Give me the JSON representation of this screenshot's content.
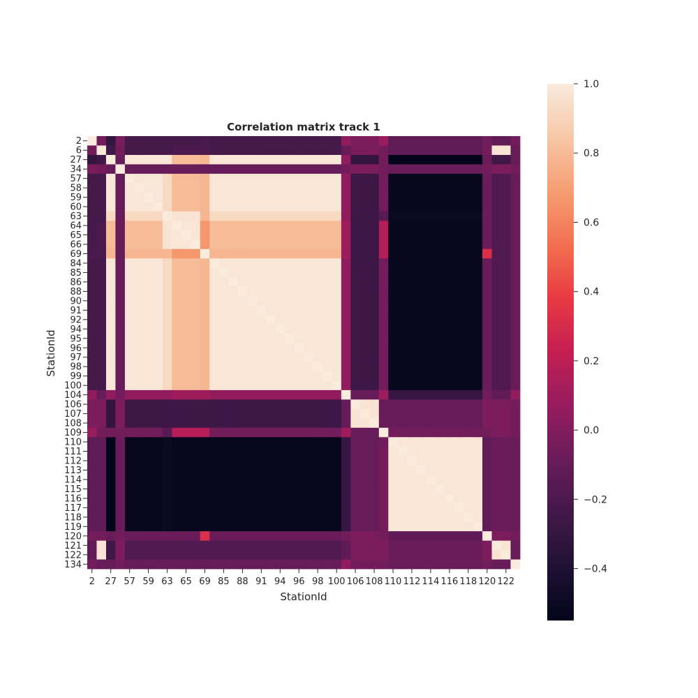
{
  "chart_data": {
    "type": "heatmap",
    "title": "Correlation matrix track 1",
    "xlabel": "StationId",
    "ylabel": "StationId",
    "labels": [
      "2",
      "6",
      "27",
      "34",
      "57",
      "58",
      "59",
      "60",
      "63",
      "64",
      "65",
      "66",
      "69",
      "84",
      "85",
      "86",
      "88",
      "90",
      "91",
      "92",
      "94",
      "95",
      "96",
      "97",
      "98",
      "99",
      "100",
      "104",
      "106",
      "107",
      "108",
      "109",
      "110",
      "111",
      "112",
      "113",
      "114",
      "115",
      "116",
      "117",
      "118",
      "119",
      "120",
      "121",
      "122",
      "134"
    ],
    "y_tick_labels": [
      "2",
      "6",
      "27",
      "34",
      "57",
      "58",
      "59",
      "60",
      "63",
      "64",
      "65",
      "66",
      "69",
      "84",
      "85",
      "86",
      "88",
      "90",
      "91",
      "92",
      "94",
      "95",
      "96",
      "97",
      "98",
      "99",
      "100",
      "104",
      "106",
      "107",
      "108",
      "109",
      "110",
      "111",
      "112",
      "113",
      "114",
      "115",
      "116",
      "117",
      "118",
      "119",
      "120",
      "121",
      "122",
      "134"
    ],
    "x_tick_labels": [
      "2",
      "27",
      "57",
      "59",
      "63",
      "65",
      "69",
      "85",
      "88",
      "91",
      "94",
      "96",
      "98",
      "100",
      "106",
      "108",
      "110",
      "112",
      "114",
      "116",
      "118",
      "120",
      "122"
    ],
    "x_tick_step": 2,
    "colormap": "rocket",
    "colorbar": {
      "vmin": -0.55,
      "vmax": 1.0,
      "ticks": [
        1.0,
        0.8,
        0.6,
        0.4,
        0.2,
        0.0,
        -0.2,
        -0.4
      ],
      "tick_labels": [
        "1.0",
        "0.8",
        "0.6",
        "0.4",
        "0.2",
        "0.0",
        "−0.2",
        "−0.4"
      ]
    },
    "grid": false,
    "groups": {
      "2": {
        "g": "s2"
      },
      "6": {
        "g": "s6"
      },
      "27": {
        "g": "A",
        "dev": "27"
      },
      "34": {
        "g": "s34"
      },
      "57": {
        "g": "A"
      },
      "58": {
        "g": "A"
      },
      "59": {
        "g": "A"
      },
      "60": {
        "g": "A"
      },
      "63": {
        "g": "A",
        "dev": "63"
      },
      "64": {
        "g": "B"
      },
      "65": {
        "g": "B"
      },
      "66": {
        "g": "B"
      },
      "69": {
        "g": "s69"
      },
      "84": {
        "g": "A"
      },
      "85": {
        "g": "A"
      },
      "86": {
        "g": "A"
      },
      "88": {
        "g": "A"
      },
      "90": {
        "g": "A"
      },
      "91": {
        "g": "A"
      },
      "92": {
        "g": "A"
      },
      "94": {
        "g": "A"
      },
      "95": {
        "g": "A"
      },
      "96": {
        "g": "A"
      },
      "97": {
        "g": "A"
      },
      "98": {
        "g": "A"
      },
      "99": {
        "g": "A"
      },
      "100": {
        "g": "A"
      },
      "104": {
        "g": "s104"
      },
      "106": {
        "g": "C"
      },
      "107": {
        "g": "C"
      },
      "108": {
        "g": "C"
      },
      "109": {
        "g": "s109"
      },
      "110": {
        "g": "D"
      },
      "111": {
        "g": "D"
      },
      "112": {
        "g": "D"
      },
      "113": {
        "g": "D"
      },
      "114": {
        "g": "D"
      },
      "115": {
        "g": "D"
      },
      "116": {
        "g": "D"
      },
      "117": {
        "g": "D"
      },
      "118": {
        "g": "D"
      },
      "119": {
        "g": "D"
      },
      "120": {
        "g": "s120"
      },
      "121": {
        "g": "E"
      },
      "122": {
        "g": "E"
      },
      "134": {
        "g": "s134"
      }
    },
    "block_values": {
      "A|A": 0.98,
      "A|B": 0.8,
      "B|B": 0.98,
      "A|s69": 0.78,
      "B|s69": 0.67,
      "A|C": -0.26,
      "A|D": -0.53,
      "A|E": -0.18,
      "A|s104": 0.05,
      "A|s109": -0.05,
      "A|s120": -0.08,
      "A|s2": -0.22,
      "A|s6": -0.22,
      "A|s34": -0.1,
      "A|s134": -0.1,
      "B|C": -0.26,
      "B|D": -0.53,
      "B|E": -0.18,
      "B|s104": 0.1,
      "B|s109": 0.17,
      "B|s120": -0.08,
      "B|s2": -0.22,
      "B|s6": -0.2,
      "B|s34": -0.1,
      "B|s134": -0.1,
      "C|C": 0.97,
      "C|D": -0.1,
      "C|E": -0.02,
      "C|s104": -0.1,
      "C|s109": -0.1,
      "C|s120": -0.02,
      "C|s2": -0.02,
      "C|s6": -0.02,
      "C|s34": -0.02,
      "C|s134": -0.05,
      "D|D": 0.98,
      "D|E": -0.08,
      "D|s104": -0.28,
      "D|s109": -0.05,
      "D|s120": -0.12,
      "D|s2": -0.12,
      "D|s6": -0.12,
      "D|s34": -0.08,
      "D|s134": -0.08,
      "E|E": 0.97,
      "E|s104": -0.12,
      "E|s109": -0.02,
      "E|s120": -0.02,
      "E|s2": -0.12,
      "E|s6": 0.97,
      "E|s34": -0.02,
      "E|s134": -0.1,
      "s2|s6": -0.05,
      "s2|s34": -0.03,
      "s2|s69": -0.2,
      "s2|s104": 0.05,
      "s2|s109": 0.08,
      "s2|s120": -0.05,
      "s2|s134": -0.05,
      "s6|s34": -0.05,
      "s6|s69": -0.2,
      "s6|s104": -0.1,
      "s6|s109": -0.05,
      "s6|s120": -0.05,
      "s6|s134": -0.1,
      "s34|s69": -0.1,
      "s34|s104": -0.05,
      "s34|s109": -0.05,
      "s34|s120": -0.05,
      "s34|s134": -0.05,
      "s69|C": -0.26,
      "s69|D": -0.53,
      "s69|E": -0.18,
      "s69|s104": 0.1,
      "s69|s109": 0.17,
      "s69|s120": 0.32,
      "s69|s134": -0.1,
      "s104|s109": 0.1,
      "s104|s120": -0.05,
      "s104|s134": 0.05,
      "s109|s120": -0.05,
      "s109|s134": -0.05,
      "s120|s134": -0.05
    },
    "diagonal": 1.0,
    "label_overrides": {
      "27|D": -0.55,
      "27|C": -0.3,
      "27|s2": -0.3,
      "27|s6": -0.25,
      "27|E": -0.25,
      "63|A": 0.92,
      "63|B": 0.97,
      "63|s109": -0.15,
      "63|s104": 0.05,
      "63|D": -0.5,
      "27|A": 0.98,
      "27|B": 0.8
    }
  }
}
